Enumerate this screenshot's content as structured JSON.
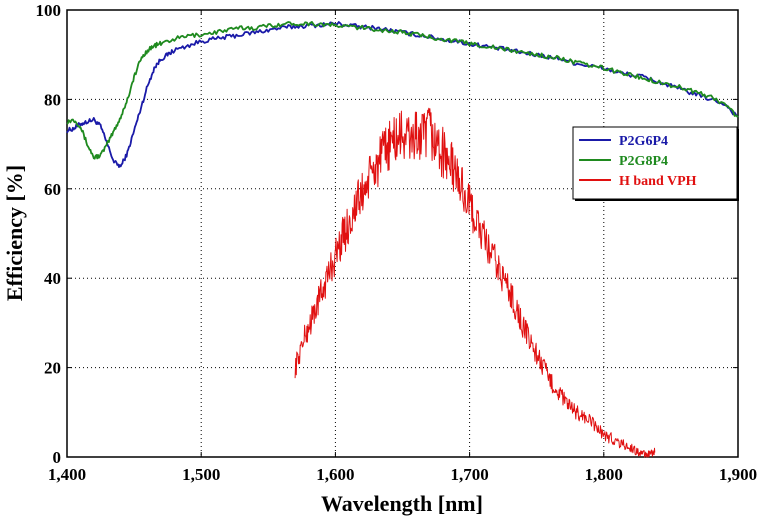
{
  "chart_data": {
    "type": "line",
    "title": "",
    "xlabel": "Wavelength [nm]",
    "ylabel": "Efficiency [%]",
    "xlim": [
      1400,
      1900
    ],
    "ylim": [
      0,
      100
    ],
    "xticks": [
      1400,
      1500,
      1600,
      1700,
      1800,
      1900
    ],
    "xtick_labels": [
      "1,400",
      "1,500",
      "1,600",
      "1,700",
      "1,800",
      "1,900"
    ],
    "yticks": [
      0,
      20,
      40,
      60,
      80,
      100
    ],
    "ytick_labels": [
      "0",
      "20",
      "40",
      "60",
      "80",
      "100"
    ],
    "grid": true,
    "legend_position": "right",
    "series": [
      {
        "name": "P2G6P4",
        "color": "#1a1aa8",
        "x": [
          1400,
          1405,
          1410,
          1415,
          1420,
          1425,
          1430,
          1435,
          1440,
          1445,
          1450,
          1455,
          1460,
          1465,
          1470,
          1475,
          1480,
          1490,
          1500,
          1510,
          1520,
          1530,
          1540,
          1550,
          1560,
          1570,
          1580,
          1590,
          1600,
          1610,
          1620,
          1630,
          1640,
          1650,
          1660,
          1670,
          1680,
          1690,
          1700,
          1710,
          1720,
          1730,
          1740,
          1750,
          1760,
          1770,
          1780,
          1790,
          1800,
          1810,
          1820,
          1830,
          1840,
          1850,
          1860,
          1870,
          1880,
          1890,
          1900
        ],
        "y": [
          73,
          73.5,
          74.5,
          75,
          75.5,
          74,
          70,
          66,
          65,
          68,
          73,
          78,
          83,
          87,
          89,
          90,
          91,
          92,
          93,
          93.5,
          94,
          94.5,
          95,
          95.5,
          96,
          96.3,
          96.5,
          96.7,
          97,
          96.6,
          96.2,
          96,
          95.5,
          95,
          94.5,
          94,
          93.4,
          93,
          92.4,
          92,
          91.5,
          91,
          90.4,
          90,
          89.4,
          89,
          88,
          87.5,
          87,
          86,
          85.5,
          85,
          84,
          83,
          82,
          81,
          80,
          79,
          76
        ]
      },
      {
        "name": "P2G8P4",
        "color": "#1f8a1f",
        "x": [
          1400,
          1405,
          1410,
          1415,
          1420,
          1425,
          1430,
          1435,
          1440,
          1445,
          1450,
          1455,
          1460,
          1465,
          1470,
          1480,
          1490,
          1500,
          1510,
          1520,
          1530,
          1540,
          1550,
          1560,
          1570,
          1580,
          1590,
          1600,
          1610,
          1620,
          1630,
          1640,
          1650,
          1660,
          1670,
          1680,
          1690,
          1700,
          1710,
          1720,
          1730,
          1740,
          1750,
          1760,
          1770,
          1780,
          1790,
          1800,
          1810,
          1820,
          1830,
          1840,
          1850,
          1860,
          1870,
          1880,
          1890,
          1900
        ],
        "y": [
          75,
          75.5,
          74,
          70,
          67,
          67.5,
          70,
          73,
          76,
          80,
          85,
          89,
          91,
          92,
          92.5,
          93.5,
          94.2,
          94.5,
          95,
          95.5,
          96,
          96,
          96.5,
          96.8,
          97,
          97,
          96.8,
          96.5,
          96.3,
          96,
          95.7,
          95.3,
          95,
          94.5,
          94,
          93.5,
          93,
          92.5,
          92,
          91.5,
          91,
          90.5,
          90,
          89.5,
          89,
          88.2,
          87.5,
          87,
          86.2,
          85.5,
          84.7,
          84,
          83.2,
          82.5,
          81.5,
          80.5,
          79,
          76
        ]
      },
      {
        "name": "H band VPH",
        "color": "#e01010",
        "x": [
          1570,
          1575,
          1580,
          1585,
          1590,
          1595,
          1600,
          1605,
          1610,
          1615,
          1620,
          1625,
          1630,
          1635,
          1640,
          1645,
          1650,
          1655,
          1660,
          1665,
          1670,
          1675,
          1680,
          1685,
          1690,
          1695,
          1700,
          1705,
          1710,
          1715,
          1720,
          1725,
          1730,
          1735,
          1740,
          1745,
          1750,
          1755,
          1760,
          1765,
          1770,
          1775,
          1780,
          1785,
          1790,
          1795,
          1800,
          1805,
          1810,
          1815,
          1820,
          1825,
          1830,
          1835,
          1838
        ],
        "y": [
          20,
          25,
          29,
          33,
          37,
          41,
          45,
          49,
          52,
          56,
          59,
          62,
          65,
          67,
          70,
          71,
          72,
          71,
          72,
          71,
          73,
          70,
          68,
          66,
          63,
          60,
          56,
          53,
          49,
          46,
          43,
          40,
          37,
          33,
          29,
          26,
          23,
          20,
          17,
          15,
          13,
          11,
          10,
          9,
          8,
          6.5,
          5,
          4.2,
          3.5,
          2.7,
          2,
          1.2,
          0.5,
          0.5,
          1
        ]
      }
    ]
  }
}
